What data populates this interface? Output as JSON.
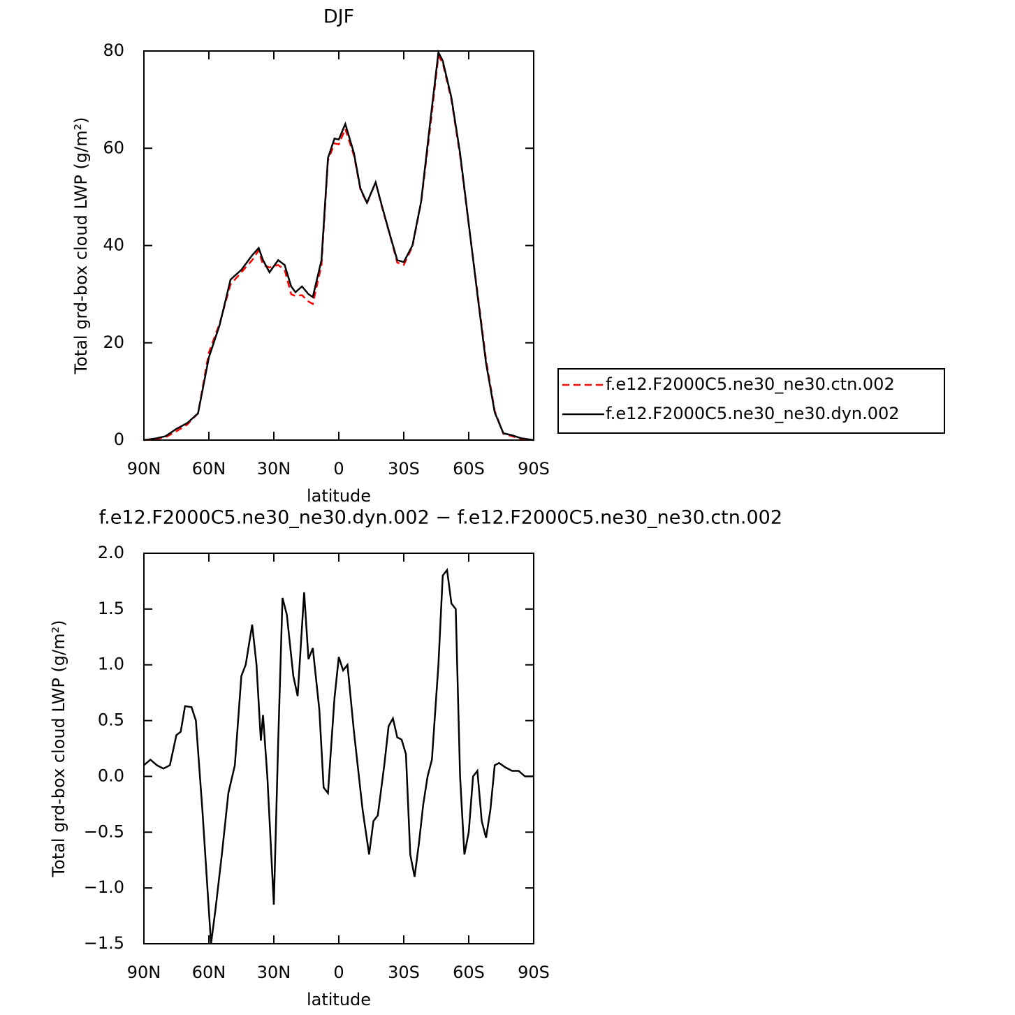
{
  "chart_data": [
    {
      "type": "line",
      "title": "DJF",
      "xlabel": "latitude",
      "ylabel": "Total grd-box cloud LWP (g/m²)",
      "x": [
        90,
        85,
        80,
        75,
        70,
        65,
        60,
        55,
        50,
        45,
        40,
        37,
        35,
        32,
        28,
        25,
        22,
        20,
        17,
        14,
        12,
        8,
        5,
        2,
        0,
        -3,
        -7,
        -10,
        -13,
        -17,
        -20,
        -24,
        -27,
        -30,
        -34,
        -38,
        -42,
        -46,
        -48,
        -52,
        -56,
        -60,
        -64,
        -68,
        -72,
        -76,
        -80,
        -84,
        -90
      ],
      "series": [
        {
          "name": "f.e12.F2000C5.ne30_ne30.ctn.002",
          "color": "#ff0000",
          "style": "dashed",
          "values": [
            0,
            0.2,
            0.6,
            1.8,
            3.2,
            5.5,
            18,
            24,
            32,
            34.5,
            37,
            39,
            36,
            35.5,
            36,
            35,
            30,
            29.6,
            29.8,
            28.5,
            28,
            36,
            57.5,
            61,
            60.8,
            64,
            58.5,
            51.5,
            48.7,
            53,
            47.8,
            41.5,
            36.5,
            36,
            39.8,
            48.8,
            63.5,
            79,
            77.5,
            70,
            58.5,
            44.3,
            30.5,
            16.5,
            6,
            1.3,
            0.8,
            0.3,
            0
          ]
        },
        {
          "name": "f.e12.F2000C5.ne30_ne30.dyn.002",
          "color": "#000000",
          "style": "solid",
          "values": [
            0,
            0.3,
            0.8,
            2.3,
            3.5,
            5.5,
            17,
            23.7,
            33,
            35,
            38,
            39.5,
            37,
            34.5,
            37,
            36,
            31.6,
            30.4,
            31.6,
            30,
            29.4,
            37,
            58,
            62,
            61.8,
            65,
            59,
            51.7,
            48.8,
            53,
            48,
            41.6,
            37,
            36.6,
            40,
            49,
            64.6,
            79.7,
            78,
            70.4,
            59,
            44.5,
            30,
            15.8,
            5.7,
            1.4,
            1,
            0.4,
            0
          ]
        }
      ],
      "xlim": [
        90,
        -90
      ],
      "xticks": [
        {
          "value": 90,
          "label": "90N"
        },
        {
          "value": 60,
          "label": "60N"
        },
        {
          "value": 30,
          "label": "30N"
        },
        0,
        {
          "value": -30,
          "label": "30S"
        },
        {
          "value": -60,
          "label": "60S"
        },
        {
          "value": -90,
          "label": "90S"
        }
      ],
      "ylim": [
        0,
        80
      ],
      "yticks": [
        0,
        20,
        40,
        60,
        80
      ],
      "legend": "right"
    },
    {
      "type": "line",
      "title": "f.e12.F2000C5.ne30_ne30.dyn.002 − f.e12.F2000C5.ne30_ne30.ctn.002",
      "xlabel": "latitude",
      "ylabel": "Total grd-box cloud LWP (g/m²)",
      "x": [
        90,
        87,
        84,
        81,
        78,
        75,
        73,
        71,
        68,
        66,
        63,
        60,
        59,
        57,
        54,
        51,
        48,
        45,
        43,
        40,
        38,
        36,
        35,
        33,
        30,
        28,
        26,
        24,
        21,
        19,
        16,
        14,
        12,
        9,
        7,
        5,
        2,
        0,
        -2,
        -4,
        -7,
        -9,
        -11,
        -14,
        -16,
        -18,
        -21,
        -23,
        -25,
        -27,
        -29,
        -31,
        -33,
        -35,
        -37,
        -39,
        -41,
        -43,
        -46,
        -48,
        -50,
        -52,
        -54,
        -56,
        -58,
        -60,
        -62,
        -64,
        -66,
        -68,
        -70,
        -72,
        -74,
        -77,
        -80,
        -83,
        -86,
        -90
      ],
      "series": [
        {
          "name": null,
          "color": "#000000",
          "style": "solid",
          "values": [
            0.1,
            0.15,
            0.1,
            0.07,
            0.1,
            0.37,
            0.4,
            0.63,
            0.62,
            0.5,
            -0.3,
            -1.2,
            -1.5,
            -1.2,
            -0.7,
            -0.15,
            0.1,
            0.9,
            1.0,
            1.36,
            1.0,
            0.32,
            0.55,
            0.0,
            -1.15,
            0.3,
            1.6,
            1.45,
            0.9,
            0.72,
            1.65,
            1.05,
            1.15,
            0.6,
            -0.1,
            -0.15,
            0.7,
            1.07,
            0.95,
            1.0,
            0.4,
            0.05,
            -0.3,
            -0.7,
            -0.4,
            -0.35,
            0.1,
            0.45,
            0.52,
            0.35,
            0.33,
            0.2,
            -0.7,
            -0.9,
            -0.6,
            -0.25,
            0.0,
            0.15,
            1.0,
            1.8,
            1.85,
            1.55,
            1.5,
            0.0,
            -0.7,
            -0.5,
            0.0,
            0.05,
            -0.4,
            -0.55,
            -0.3,
            0.1,
            0.12,
            0.08,
            0.05,
            0.05,
            0.0,
            0.0
          ]
        }
      ],
      "xlim": [
        90,
        -90
      ],
      "xticks": [
        {
          "value": 90,
          "label": "90N"
        },
        {
          "value": 60,
          "label": "60N"
        },
        {
          "value": 30,
          "label": "30N"
        },
        0,
        {
          "value": -30,
          "label": "30S"
        },
        {
          "value": -60,
          "label": "60S"
        },
        {
          "value": -90,
          "label": "90S"
        }
      ],
      "ylim": [
        -1.5,
        2.0
      ],
      "yticks": [
        {
          "value": -1.5,
          "label": "−1.5"
        },
        {
          "value": -1,
          "label": "−1.0"
        },
        {
          "value": -0.5,
          "label": "−0.5"
        },
        {
          "value": 0,
          "label": "0.0"
        },
        0.5,
        {
          "value": 1,
          "label": "1.0"
        },
        1.5,
        {
          "value": 2,
          "label": "2.0"
        }
      ]
    }
  ]
}
